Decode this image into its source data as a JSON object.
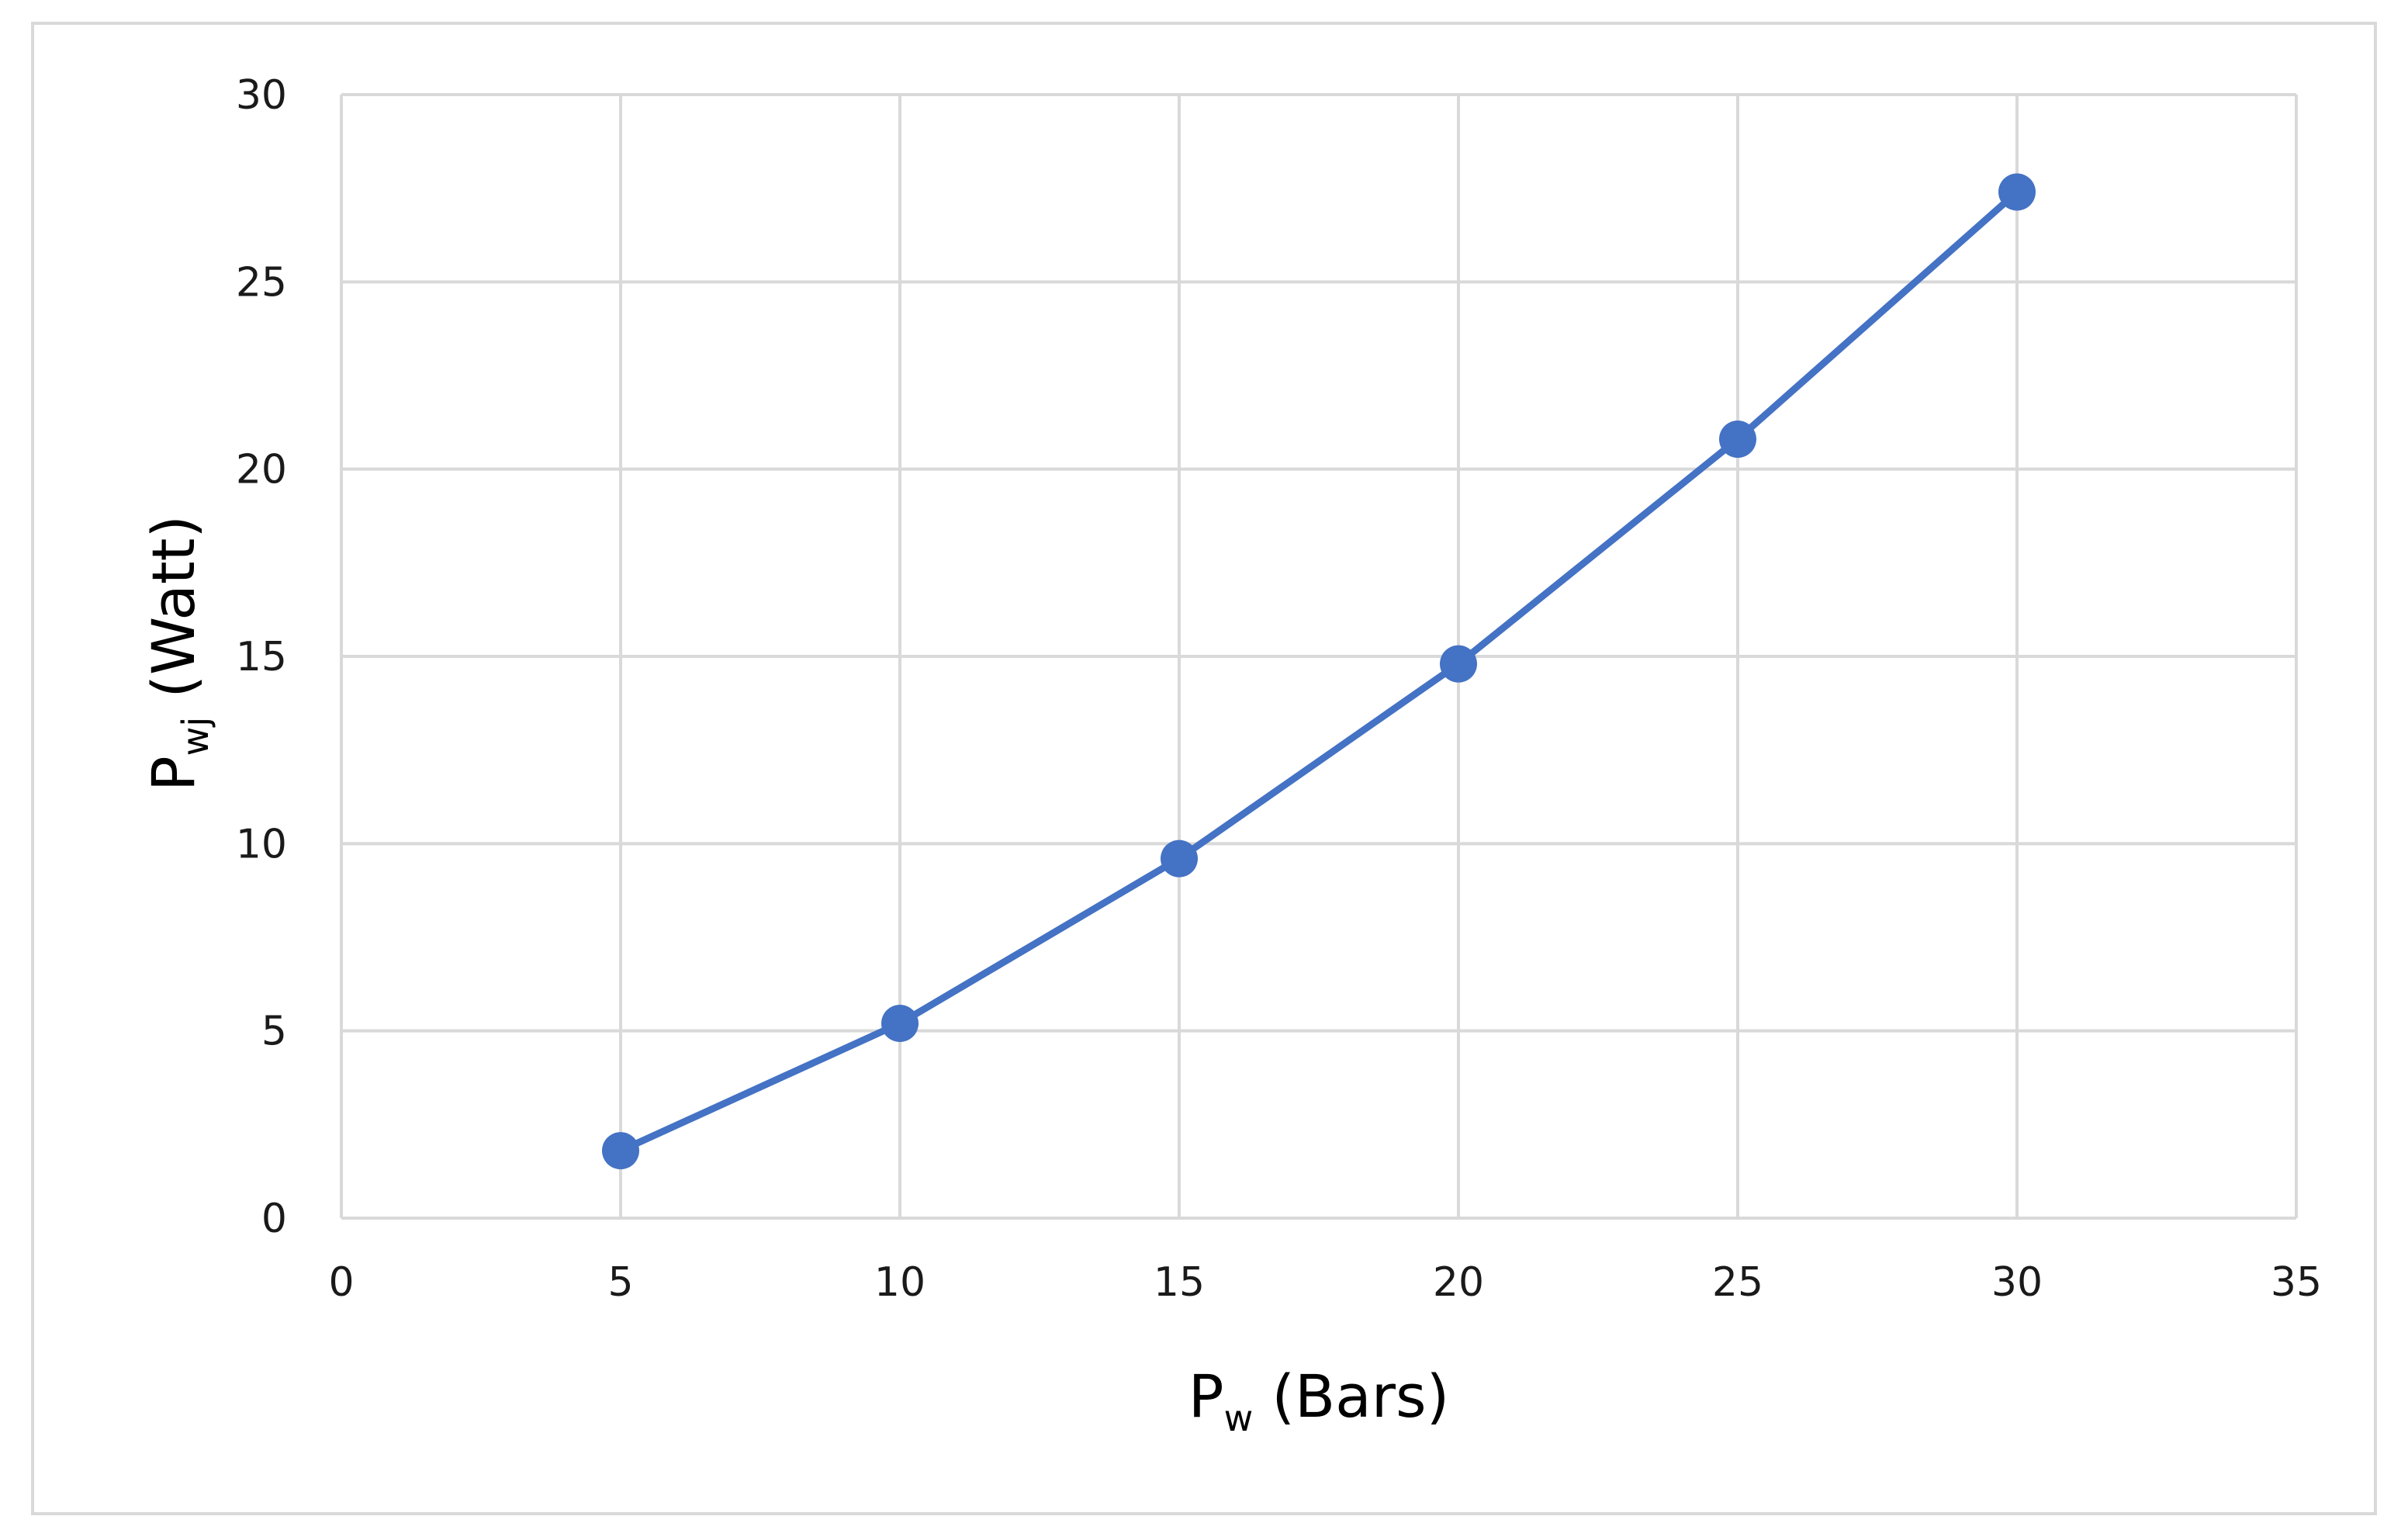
{
  "chart_data": {
    "type": "line",
    "title": "",
    "xlabel": {
      "main": "P",
      "sub": "w",
      "suffix": " (Bars)"
    },
    "ylabel": {
      "main": "P",
      "sub": "wj",
      "suffix": " (Watt)"
    },
    "xlim": [
      0,
      35
    ],
    "ylim": [
      0,
      30
    ],
    "x_ticks": [
      0,
      5,
      10,
      15,
      20,
      25,
      30,
      35
    ],
    "y_ticks": [
      0,
      5,
      10,
      15,
      20,
      25,
      30
    ],
    "x_tick_labels": [
      "0",
      "5",
      "10",
      "15",
      "20",
      "25",
      "30",
      "35"
    ],
    "y_tick_labels": [
      "0",
      "5",
      "10",
      "15",
      "20",
      "25",
      "30"
    ],
    "grid": true,
    "legend": "none",
    "series": [
      {
        "color": "#4472c4",
        "marker": "circle",
        "x": [
          5,
          10,
          15,
          20,
          25,
          30
        ],
        "y": [
          1.8,
          5.2,
          9.6,
          14.8,
          20.8,
          27.4
        ]
      }
    ]
  }
}
